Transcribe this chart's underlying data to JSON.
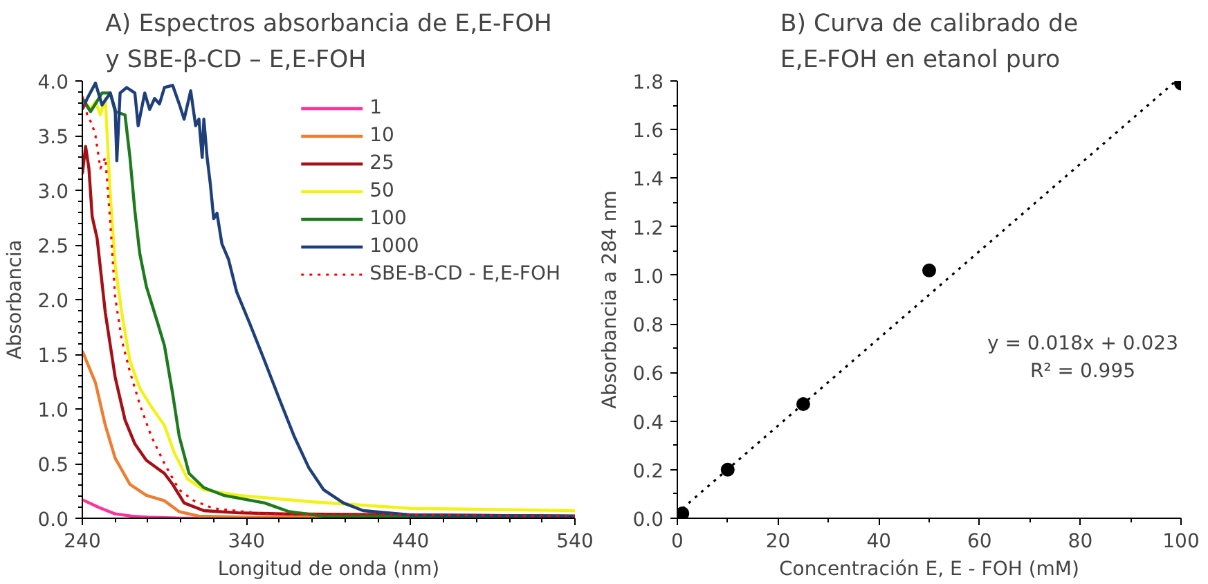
{
  "chart_data": [
    {
      "type": "line",
      "title": "A) Espectros absorbancia de E,E-FOH\ny SBE-β-CD – E,E-FOH",
      "xlabel": "Longitud de onda (nm)",
      "ylabel": "Absorbancia",
      "xlim": [
        240,
        540
      ],
      "xticks": [
        240,
        340,
        440,
        540
      ],
      "ylim": [
        0,
        4
      ],
      "yticks": [
        {
          "value": 0,
          "label": "0.0"
        },
        {
          "value": 0.5,
          "label": "0.5"
        },
        {
          "value": 1,
          "label": "1.0"
        },
        {
          "value": 1.5,
          "label": "1.5"
        },
        {
          "value": 2,
          "label": "2.0"
        },
        {
          "value": 2.5,
          "label": "2.5"
        },
        {
          "value": 3,
          "label": "3.0"
        },
        {
          "value": 3.5,
          "label": "3.5"
        },
        {
          "value": 4,
          "label": "4.0"
        }
      ],
      "grid": false,
      "legend": "top right",
      "marker": "none",
      "series": [
        {
          "name": "1",
          "color": "#ff3399",
          "x": [
            240,
            250,
            260,
            270,
            280,
            300,
            340
          ],
          "values": [
            0.17,
            0.1,
            0.04,
            0.02,
            0.01,
            0.0,
            0.0
          ]
        },
        {
          "name": "10",
          "color": "#ed7d31",
          "x": [
            240,
            248,
            254,
            260,
            269,
            279,
            290,
            299,
            311,
            340,
            440,
            540
          ],
          "values": [
            1.53,
            1.24,
            0.85,
            0.55,
            0.31,
            0.21,
            0.16,
            0.06,
            0.02,
            0.01,
            0.01,
            0.01
          ]
        },
        {
          "name": "25",
          "color": "#a50f15",
          "x": [
            240,
            242,
            244,
            246,
            249,
            254,
            260,
            266,
            272,
            279,
            290,
            295,
            302,
            314,
            335,
            363,
            540
          ],
          "values": [
            3.15,
            3.4,
            3.2,
            2.76,
            2.56,
            1.88,
            1.29,
            0.9,
            0.68,
            0.53,
            0.41,
            0.31,
            0.14,
            0.07,
            0.05,
            0.04,
            0.02
          ]
        },
        {
          "name": "50",
          "color": "#f2f21a",
          "x": [
            240,
            245,
            248,
            251,
            254,
            257,
            260,
            264,
            269,
            275,
            282,
            290,
            296,
            304,
            314,
            335,
            380,
            440,
            540
          ],
          "values": [
            3.84,
            3.74,
            3.81,
            3.69,
            3.84,
            2.96,
            2.32,
            1.88,
            1.44,
            1.19,
            1.02,
            0.85,
            0.6,
            0.36,
            0.26,
            0.21,
            0.15,
            0.09,
            0.07
          ]
        },
        {
          "name": "100",
          "color": "#1e7a1e",
          "x": [
            240,
            245,
            248,
            252,
            257,
            260,
            266,
            269,
            272,
            275,
            279,
            286,
            290,
            295,
            299,
            305,
            314,
            326,
            351,
            366,
            387,
            540
          ],
          "values": [
            3.84,
            3.72,
            3.79,
            3.89,
            3.89,
            3.72,
            3.69,
            3.3,
            2.81,
            2.42,
            2.12,
            1.78,
            1.58,
            1.14,
            0.75,
            0.41,
            0.28,
            0.21,
            0.14,
            0.06,
            0.02,
            0.02
          ]
        },
        {
          "name": "1000",
          "color": "#1f3f7a",
          "x": [
            240,
            243,
            248,
            252,
            257,
            260,
            261,
            263,
            267,
            272,
            274,
            278,
            281,
            284,
            287,
            290,
            295,
            299,
            302,
            306,
            309,
            311,
            313,
            314,
            316,
            318,
            320,
            322,
            325,
            329,
            334,
            342,
            351,
            360,
            369,
            378,
            387,
            399,
            411,
            440,
            540
          ],
          "values": [
            3.74,
            3.84,
            3.98,
            3.78,
            3.89,
            3.74,
            3.27,
            3.89,
            3.94,
            3.89,
            3.59,
            3.89,
            3.74,
            3.84,
            3.79,
            3.94,
            3.96,
            3.79,
            3.65,
            3.91,
            3.59,
            3.65,
            3.3,
            3.65,
            3.3,
            3.05,
            2.74,
            2.79,
            2.51,
            2.37,
            2.07,
            1.78,
            1.44,
            1.09,
            0.75,
            0.46,
            0.26,
            0.14,
            0.07,
            0.03,
            0.02
          ]
        },
        {
          "name": "SBE-B-CD - E,E-FOH",
          "color": "#ff0000",
          "line_style": "dotted",
          "x": [
            240,
            243,
            246,
            248,
            251,
            254,
            257,
            260,
            264,
            269,
            275,
            282,
            290,
            299,
            308,
            320,
            351,
            540
          ],
          "values": [
            3.86,
            3.69,
            3.6,
            3.5,
            3.2,
            3.3,
            2.71,
            2.02,
            1.63,
            1.34,
            1.04,
            0.75,
            0.5,
            0.26,
            0.16,
            0.09,
            0.04,
            0.02
          ]
        }
      ]
    },
    {
      "type": "scatter",
      "title": "B) Curva de calibrado de\nE,E-FOH en etanol puro",
      "xlabel": "Concentración E, E - FOH (mM)",
      "ylabel": "Absorbancia a 284 nm",
      "xlim": [
        0,
        100
      ],
      "xticks": [
        0,
        20,
        40,
        60,
        80,
        100
      ],
      "ylim": [
        0,
        1.8
      ],
      "yticks": [
        {
          "value": 0,
          "label": "0.0"
        },
        {
          "value": 0.2,
          "label": "0.2"
        },
        {
          "value": 0.4,
          "label": "0.4"
        },
        {
          "value": 0.6,
          "label": "0.6"
        },
        {
          "value": 0.8,
          "label": "0.8"
        },
        {
          "value": 1.0,
          "label": "1.0"
        },
        {
          "value": 1.2,
          "label": "1.2"
        },
        {
          "value": 1.4,
          "label": "1.4"
        },
        {
          "value": 1.6,
          "label": "1.6"
        },
        {
          "value": 1.8,
          "label": "1.8"
        }
      ],
      "grid": false,
      "legend": false,
      "marker": "circle",
      "annotations": [
        "y = 0.018x + 0.023",
        "R² = 0.995"
      ],
      "series": [
        {
          "type": "line",
          "color": "#000000",
          "line_style": "dotted",
          "marker": "none",
          "x": [
            1,
            99
          ],
          "values": [
            0.04,
            1.8
          ]
        },
        {
          "type": "scatter",
          "color": "#000000",
          "x": [
            1,
            10,
            25,
            50,
            100
          ],
          "values": [
            0.02,
            0.2,
            0.47,
            1.02,
            1.79
          ]
        }
      ]
    }
  ]
}
